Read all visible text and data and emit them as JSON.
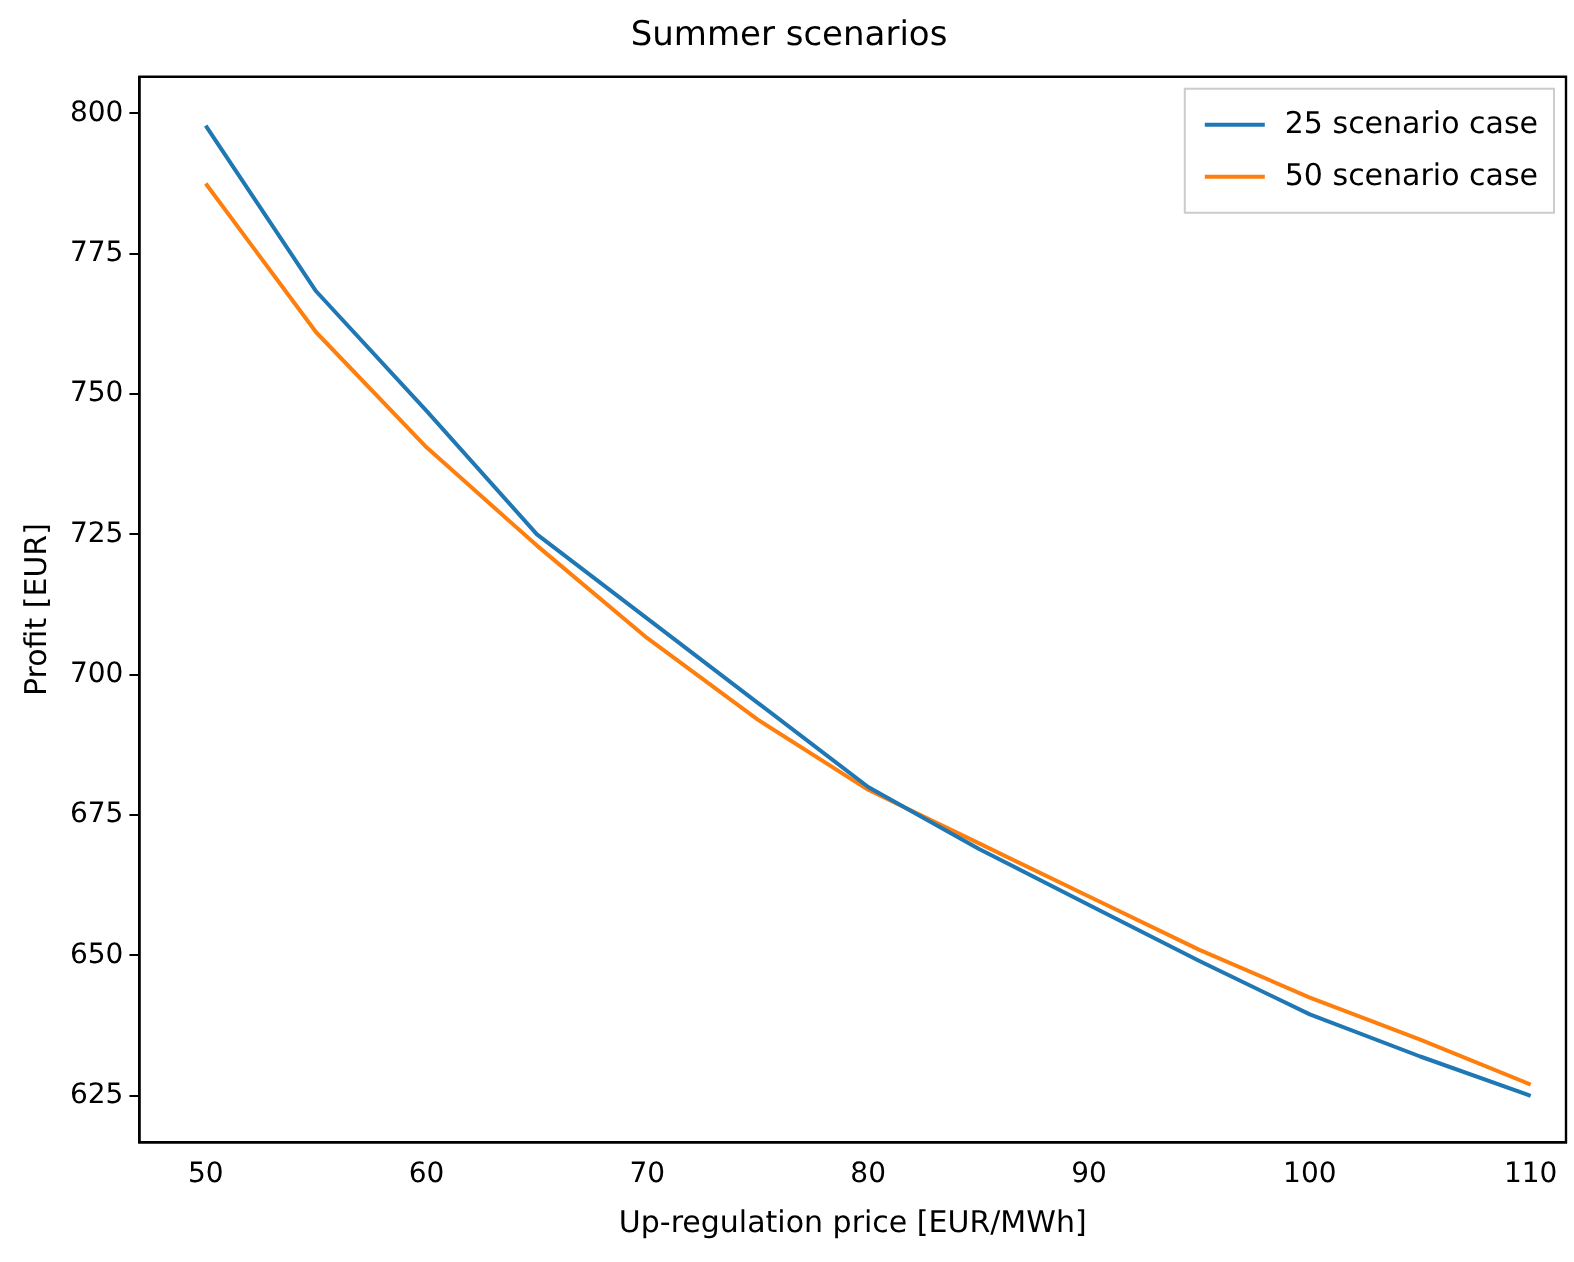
{
  "chart_data": {
    "type": "line",
    "title": "Summer scenarios",
    "xlabel": "Up-regulation price [EUR/MWh]",
    "ylabel": "Profit [EUR]",
    "x": [
      50,
      55,
      60,
      65,
      70,
      75,
      80,
      85,
      90,
      95,
      100,
      105,
      110
    ],
    "series": [
      {
        "name": "25 scenario case",
        "color": "#1f77b4",
        "values": [
          797.8,
          768.3,
          747,
          725,
          710,
          695,
          680,
          669,
          659,
          649,
          639.5,
          632,
          625
        ]
      },
      {
        "name": "50 scenario case",
        "color": "#ff7f0e",
        "values": [
          787.5,
          761,
          740.5,
          723,
          706.5,
          692,
          679.5,
          670,
          660.5,
          651,
          642.5,
          635,
          627
        ]
      }
    ],
    "xlim": [
      47,
      111.6
    ],
    "ylim": [
      616.7,
      806.5
    ],
    "xticks": [
      50,
      60,
      70,
      80,
      90,
      100,
      110
    ],
    "yticks": [
      625,
      650,
      675,
      700,
      725,
      750,
      775,
      800
    ],
    "grid": false,
    "legend": "top right",
    "marker": "none",
    "line_style": "solid"
  }
}
